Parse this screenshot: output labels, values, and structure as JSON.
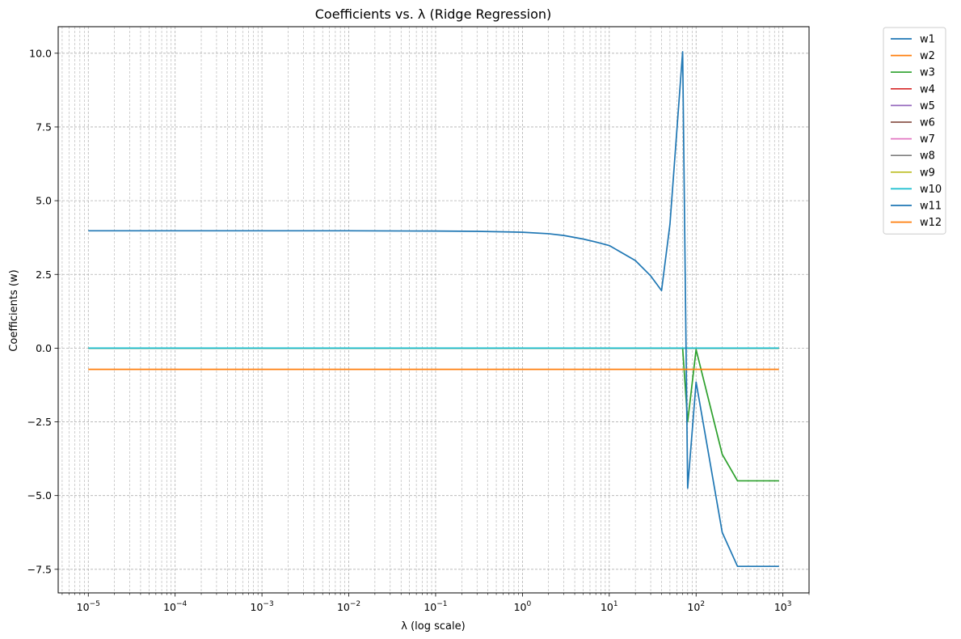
{
  "chart_data": {
    "type": "line",
    "title": "Coefficients vs. λ (Ridge Regression)",
    "xlabel": "λ (log scale)",
    "ylabel": "Coefficients (w)",
    "xscale": "log",
    "xlim": [
      4.5e-06,
      2000
    ],
    "ylim": [
      -8.3,
      10.9
    ],
    "grid": true,
    "legend_position": "outside right",
    "x_ticks": [
      {
        "value": 1e-05,
        "base": "10",
        "exp": "−5"
      },
      {
        "value": 0.0001,
        "base": "10",
        "exp": "−4"
      },
      {
        "value": 0.001,
        "base": "10",
        "exp": "−3"
      },
      {
        "value": 0.01,
        "base": "10",
        "exp": "−2"
      },
      {
        "value": 0.1,
        "base": "10",
        "exp": "−1"
      },
      {
        "value": 1,
        "base": "10",
        "exp": "0"
      },
      {
        "value": 10,
        "base": "10",
        "exp": "1"
      },
      {
        "value": 100,
        "base": "10",
        "exp": "2"
      },
      {
        "value": 1000,
        "base": "10",
        "exp": "3"
      }
    ],
    "y_ticks": [
      {
        "value": -7.5,
        "label": "−7.5"
      },
      {
        "value": -5.0,
        "label": "−5.0"
      },
      {
        "value": -2.5,
        "label": "−2.5"
      },
      {
        "value": 0.0,
        "label": "0.0"
      },
      {
        "value": 2.5,
        "label": "2.5"
      },
      {
        "value": 5.0,
        "label": "5.0"
      },
      {
        "value": 7.5,
        "label": "7.5"
      },
      {
        "value": 10.0,
        "label": "10.0"
      }
    ],
    "series": [
      {
        "name": "w1",
        "color": "#1f77b4",
        "points": [
          [
            1e-05,
            0
          ],
          [
            70,
            0
          ],
          [
            80,
            0
          ],
          [
            100,
            0
          ],
          [
            200,
            0
          ],
          [
            300,
            0
          ],
          [
            900,
            0
          ]
        ]
      },
      {
        "name": "w2",
        "color": "#ff7f0e",
        "points": [
          [
            1e-05,
            0
          ],
          [
            900,
            0
          ]
        ]
      },
      {
        "name": "w3",
        "color": "#2ca02c",
        "points": [
          [
            1e-05,
            0
          ],
          [
            70,
            0
          ],
          [
            80,
            -2.5
          ],
          [
            100,
            -0.05
          ],
          [
            200,
            -3.6
          ],
          [
            300,
            -4.5
          ],
          [
            900,
            -4.5
          ]
        ]
      },
      {
        "name": "w4",
        "color": "#d62728",
        "points": [
          [
            1e-05,
            0
          ],
          [
            900,
            0
          ]
        ]
      },
      {
        "name": "w5",
        "color": "#9467bd",
        "points": [
          [
            1e-05,
            0
          ],
          [
            900,
            0
          ]
        ]
      },
      {
        "name": "w6",
        "color": "#8c564b",
        "points": [
          [
            1e-05,
            0
          ],
          [
            900,
            0
          ]
        ]
      },
      {
        "name": "w7",
        "color": "#e377c2",
        "points": [
          [
            1e-05,
            0
          ],
          [
            900,
            0
          ]
        ]
      },
      {
        "name": "w8",
        "color": "#7f7f7f",
        "points": [
          [
            1e-05,
            0
          ],
          [
            900,
            0
          ]
        ]
      },
      {
        "name": "w9",
        "color": "#bcbd22",
        "points": [
          [
            1e-05,
            0
          ],
          [
            900,
            0
          ]
        ]
      },
      {
        "name": "w10",
        "color": "#17becf",
        "points": [
          [
            1e-05,
            0
          ],
          [
            900,
            0
          ]
        ]
      },
      {
        "name": "w11",
        "color": "#1f77b4",
        "points": [
          [
            1e-05,
            3.98
          ],
          [
            0.01,
            3.98
          ],
          [
            0.1,
            3.97
          ],
          [
            0.3,
            3.96
          ],
          [
            1,
            3.93
          ],
          [
            2,
            3.88
          ],
          [
            3,
            3.82
          ],
          [
            5,
            3.7
          ],
          [
            7,
            3.6
          ],
          [
            10,
            3.48
          ],
          [
            20,
            2.97
          ],
          [
            30,
            2.45
          ],
          [
            40,
            1.95
          ],
          [
            50,
            4.2
          ],
          [
            70,
            10.05
          ],
          [
            80,
            -4.75
          ],
          [
            100,
            -1.15
          ],
          [
            200,
            -6.25
          ],
          [
            300,
            -7.4
          ],
          [
            900,
            -7.4
          ]
        ]
      },
      {
        "name": "w12",
        "color": "#ff7f0e",
        "points": [
          [
            1e-05,
            -0.72
          ],
          [
            900,
            -0.72
          ]
        ]
      }
    ]
  }
}
